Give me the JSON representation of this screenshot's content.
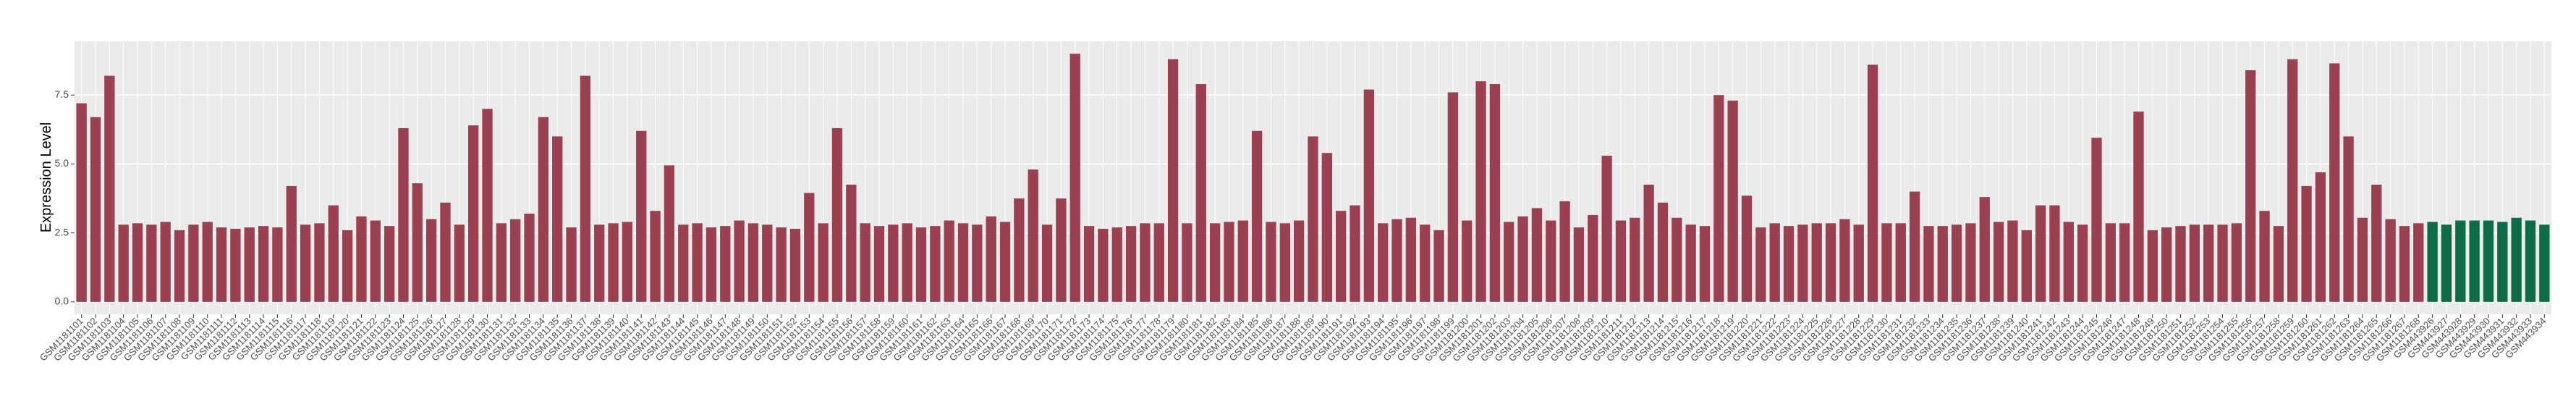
{
  "chart_data": {
    "type": "bar",
    "y_label": "Expression Level",
    "categories": [
      "GSM1181101",
      "GSM1181102",
      "GSM1181103",
      "GSM1181104",
      "GSM1181105",
      "GSM1181106",
      "GSM1181107",
      "GSM1181108",
      "GSM1181109",
      "GSM1181110",
      "GSM1181111",
      "GSM1181112",
      "GSM1181113",
      "GSM1181114",
      "GSM1181115",
      "GSM1181116",
      "GSM1181117",
      "GSM1181118",
      "GSM1181119",
      "GSM1181120",
      "GSM1181121",
      "GSM1181122",
      "GSM1181123",
      "GSM1181124",
      "GSM1181125",
      "GSM1181126",
      "GSM1181127",
      "GSM1181128",
      "GSM1181129",
      "GSM1181130",
      "GSM1181131",
      "GSM1181132",
      "GSM1181133",
      "GSM1181134",
      "GSM1181135",
      "GSM1181136",
      "GSM1181137",
      "GSM1181138",
      "GSM1181139",
      "GSM1181140",
      "GSM1181141",
      "GSM1181142",
      "GSM1181143",
      "GSM1181144",
      "GSM1181145",
      "GSM1181146",
      "GSM1181147",
      "GSM1181148",
      "GSM1181149",
      "GSM1181150",
      "GSM1181151",
      "GSM1181152",
      "GSM1181153",
      "GSM1181154",
      "GSM1181155",
      "GSM1181156",
      "GSM1181157",
      "GSM1181158",
      "GSM1181159",
      "GSM1181160",
      "GSM1181161",
      "GSM1181162",
      "GSM1181163",
      "GSM1181164",
      "GSM1181165",
      "GSM1181166",
      "GSM1181167",
      "GSM1181168",
      "GSM1181169",
      "GSM1181170",
      "GSM1181171",
      "GSM1181172",
      "GSM1181173",
      "GSM1181174",
      "GSM1181175",
      "GSM1181176",
      "GSM1181177",
      "GSM1181178",
      "GSM1181179",
      "GSM1181180",
      "GSM1181181",
      "GSM1181182",
      "GSM1181183",
      "GSM1181184",
      "GSM1181185",
      "GSM1181186",
      "GSM1181187",
      "GSM1181188",
      "GSM1181189",
      "GSM1181190",
      "GSM1181191",
      "GSM1181192",
      "GSM1181193",
      "GSM1181194",
      "GSM1181195",
      "GSM1181196",
      "GSM1181197",
      "GSM1181198",
      "GSM1181199",
      "GSM1181200",
      "GSM1181201",
      "GSM1181202",
      "GSM1181203",
      "GSM1181204",
      "GSM1181205",
      "GSM1181206",
      "GSM1181207",
      "GSM1181208",
      "GSM1181209",
      "GSM1181210",
      "GSM1181211",
      "GSM1181212",
      "GSM1181213",
      "GSM1181214",
      "GSM1181215",
      "GSM1181216",
      "GSM1181217",
      "GSM1181218",
      "GSM1181219",
      "GSM1181220",
      "GSM1181221",
      "GSM1181222",
      "GSM1181223",
      "GSM1181224",
      "GSM1181225",
      "GSM1181226",
      "GSM1181227",
      "GSM1181228",
      "GSM1181229",
      "GSM1181230",
      "GSM1181231",
      "GSM1181232",
      "GSM1181233",
      "GSM1181234",
      "GSM1181235",
      "GSM1181236",
      "GSM1181237",
      "GSM1181238",
      "GSM1181239",
      "GSM1181240",
      "GSM1181241",
      "GSM1181242",
      "GSM1181243",
      "GSM1181244",
      "GSM1181245",
      "GSM1181246",
      "GSM1181247",
      "GSM1181248",
      "GSM1181249",
      "GSM1181250",
      "GSM1181251",
      "GSM1181252",
      "GSM1181253",
      "GSM1181254",
      "GSM1181255",
      "GSM1181256",
      "GSM1181257",
      "GSM1181258",
      "GSM1181259",
      "GSM1181260",
      "GSM1181261",
      "GSM1181262",
      "GSM1181263",
      "GSM1181264",
      "GSM1181265",
      "GSM1181266",
      "GSM1181267",
      "GSM1181268",
      "GSM443926",
      "GSM443927",
      "GSM443928",
      "GSM443929",
      "GSM443930",
      "GSM443931",
      "GSM443932",
      "GSM443933",
      "GSM443934"
    ],
    "values": [
      7.2,
      6.7,
      8.2,
      2.8,
      2.85,
      2.8,
      2.9,
      2.6,
      2.8,
      2.9,
      2.7,
      2.65,
      2.7,
      2.75,
      2.7,
      4.2,
      2.8,
      2.85,
      3.5,
      2.6,
      3.1,
      2.95,
      2.75,
      6.3,
      4.3,
      3.0,
      3.6,
      2.8,
      6.4,
      7.0,
      2.85,
      3.0,
      3.2,
      6.7,
      6.0,
      2.7,
      8.2,
      2.8,
      2.85,
      2.9,
      6.2,
      3.3,
      4.95,
      2.8,
      2.85,
      2.7,
      2.75,
      2.95,
      2.85,
      2.8,
      2.7,
      2.65,
      3.95,
      2.85,
      6.3,
      4.25,
      2.85,
      2.75,
      2.8,
      2.85,
      2.7,
      2.75,
      2.95,
      2.85,
      2.8,
      3.1,
      2.9,
      3.75,
      4.8,
      2.8,
      3.75,
      9.0,
      2.75,
      2.65,
      2.7,
      2.75,
      2.85,
      2.85,
      8.8,
      2.85,
      7.9,
      2.85,
      2.9,
      2.95,
      6.2,
      2.9,
      2.85,
      2.95,
      6.0,
      5.4,
      3.3,
      3.5,
      7.7,
      2.85,
      3.0,
      3.05,
      2.8,
      2.6,
      7.6,
      2.95,
      8.0,
      7.9,
      2.9,
      3.1,
      3.4,
      2.95,
      3.65,
      2.7,
      3.15,
      5.3,
      2.95,
      3.05,
      4.25,
      3.6,
      3.05,
      2.8,
      2.75,
      7.5,
      7.3,
      3.85,
      2.7,
      2.85,
      2.75,
      2.8,
      2.85,
      2.85,
      3.0,
      2.8,
      8.6,
      2.85,
      2.85,
      4.0,
      2.75,
      2.75,
      2.8,
      2.85,
      3.8,
      2.9,
      2.95,
      2.6,
      3.5,
      3.5,
      2.9,
      2.8,
      5.95,
      2.85,
      2.85,
      6.9,
      2.6,
      2.7,
      2.75,
      2.8,
      2.8,
      2.8,
      2.85,
      8.4,
      3.3,
      2.75,
      8.8,
      4.2,
      4.7,
      8.65,
      6.0,
      3.05,
      4.25,
      3.0,
      2.75,
      2.85,
      2.9,
      2.8,
      2.95,
      2.95,
      2.95,
      2.9,
      3.05,
      2.95,
      2.8
    ],
    "colors": [
      "#9b4050",
      "#9b4050",
      "#9b4050",
      "#9b4050",
      "#9b4050",
      "#9b4050",
      "#9b4050",
      "#9b4050",
      "#9b4050",
      "#9b4050",
      "#9b4050",
      "#9b4050",
      "#9b4050",
      "#9b4050",
      "#9b4050",
      "#9b4050",
      "#9b4050",
      "#9b4050",
      "#9b4050",
      "#9b4050",
      "#9b4050",
      "#9b4050",
      "#9b4050",
      "#9b4050",
      "#9b4050",
      "#9b4050",
      "#9b4050",
      "#9b4050",
      "#9b4050",
      "#9b4050",
      "#9b4050",
      "#9b4050",
      "#9b4050",
      "#9b4050",
      "#9b4050",
      "#9b4050",
      "#9b4050",
      "#9b4050",
      "#9b4050",
      "#9b4050",
      "#9b4050",
      "#9b4050",
      "#9b4050",
      "#9b4050",
      "#9b4050",
      "#9b4050",
      "#9b4050",
      "#9b4050",
      "#9b4050",
      "#9b4050",
      "#9b4050",
      "#9b4050",
      "#9b4050",
      "#9b4050",
      "#9b4050",
      "#9b4050",
      "#9b4050",
      "#9b4050",
      "#9b4050",
      "#9b4050",
      "#9b4050",
      "#9b4050",
      "#9b4050",
      "#9b4050",
      "#9b4050",
      "#9b4050",
      "#9b4050",
      "#9b4050",
      "#9b4050",
      "#9b4050",
      "#9b4050",
      "#9b4050",
      "#9b4050",
      "#9b4050",
      "#9b4050",
      "#9b4050",
      "#9b4050",
      "#9b4050",
      "#9b4050",
      "#9b4050",
      "#9b4050",
      "#9b4050",
      "#9b4050",
      "#9b4050",
      "#9b4050",
      "#9b4050",
      "#9b4050",
      "#9b4050",
      "#9b4050",
      "#9b4050",
      "#9b4050",
      "#9b4050",
      "#9b4050",
      "#9b4050",
      "#9b4050",
      "#9b4050",
      "#9b4050",
      "#9b4050",
      "#9b4050",
      "#9b4050",
      "#9b4050",
      "#9b4050",
      "#9b4050",
      "#9b4050",
      "#9b4050",
      "#9b4050",
      "#9b4050",
      "#9b4050",
      "#9b4050",
      "#9b4050",
      "#9b4050",
      "#9b4050",
      "#9b4050",
      "#9b4050",
      "#9b4050",
      "#9b4050",
      "#9b4050",
      "#9b4050",
      "#9b4050",
      "#9b4050",
      "#9b4050",
      "#9b4050",
      "#9b4050",
      "#9b4050",
      "#9b4050",
      "#9b4050",
      "#9b4050",
      "#9b4050",
      "#9b4050",
      "#9b4050",
      "#9b4050",
      "#9b4050",
      "#9b4050",
      "#9b4050",
      "#9b4050",
      "#9b4050",
      "#9b4050",
      "#9b4050",
      "#9b4050",
      "#9b4050",
      "#9b4050",
      "#9b4050",
      "#9b4050",
      "#9b4050",
      "#9b4050",
      "#9b4050",
      "#9b4050",
      "#9b4050",
      "#9b4050",
      "#9b4050",
      "#9b4050",
      "#9b4050",
      "#9b4050",
      "#9b4050",
      "#9b4050",
      "#9b4050",
      "#9b4050",
      "#9b4050",
      "#9b4050",
      "#9b4050",
      "#9b4050",
      "#9b4050",
      "#9b4050",
      "#9b4050",
      "#9b4050",
      "#9b4050",
      "#9b4050",
      "#9b4050",
      "#0e6b47",
      "#0e6b47",
      "#0e6b47",
      "#0e6b47",
      "#0e6b47",
      "#0e6b47",
      "#0e6b47",
      "#0e6b47",
      "#0e6b47"
    ],
    "ylim": [
      -0.45,
      9.45
    ],
    "yticks": [
      {
        "value": 0,
        "label": "0.0"
      },
      2.5,
      {
        "value": 5,
        "label": "5.0"
      },
      7.5
    ],
    "grid": true
  }
}
